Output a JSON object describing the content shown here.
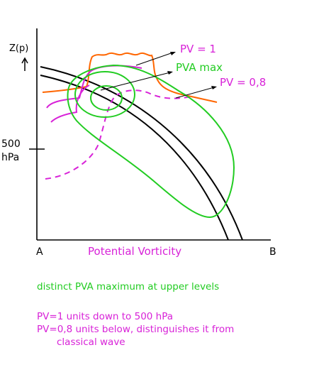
{
  "axes": {
    "y_label": "Z(p)",
    "y_arrow": "up-arrow",
    "y_tick_value": "500",
    "y_tick_unit": "hPa",
    "x_start": "A",
    "x_end": "B",
    "x_label": "Potential Vorticity"
  },
  "annotations": {
    "pv_1": "PV = 1",
    "pva_max": "PVA max",
    "pv_08": "PV = 0,8"
  },
  "captions": {
    "line1": "distinct PVA maximum at upper levels",
    "line2": "PV=1 units down to 500 hPa",
    "line3": "PV=0,8 units below, distinguishes it from",
    "line4": "classical wave"
  },
  "colors": {
    "pv_1": "#ff6600",
    "pva_max": "#22cc22",
    "pv_08": "#d822d8",
    "axis": "#000000"
  }
}
